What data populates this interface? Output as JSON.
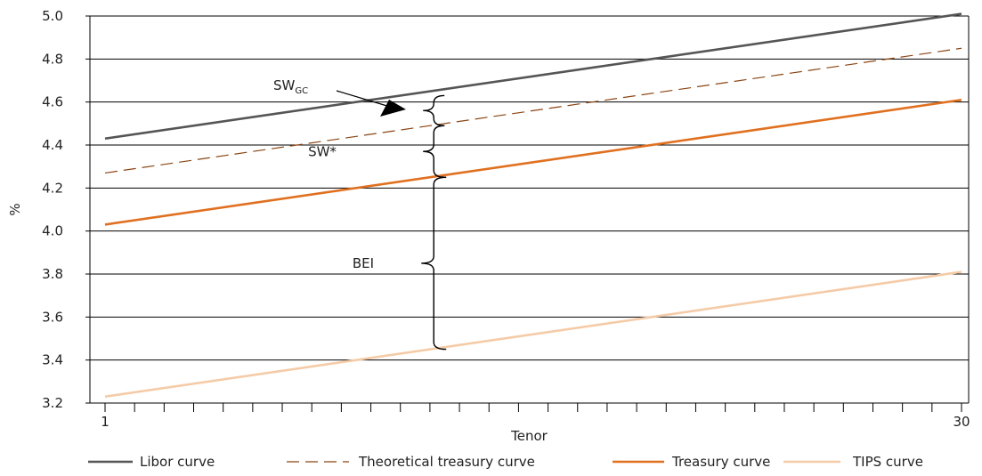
{
  "chart_data": {
    "type": "line",
    "xlabel": "Tenor",
    "ylabel": "%",
    "xlim": [
      1,
      30
    ],
    "ylim": [
      3.2,
      5.0
    ],
    "x_tick_labels": [
      "1",
      "30"
    ],
    "y_ticks": [
      3.2,
      3.4,
      3.6,
      3.8,
      4.0,
      4.2,
      4.4,
      4.6,
      4.8,
      5.0
    ],
    "y_tick_labels": [
      "3.2",
      "3.4",
      "3.6",
      "3.8",
      "4.0",
      "4.2",
      "4.4",
      "4.6",
      "4.8",
      "5.0"
    ],
    "grid": "horizontal",
    "legend_position": "bottom",
    "series": [
      {
        "name": "Libor curve",
        "x": [
          1,
          30
        ],
        "y": [
          4.43,
          5.01
        ],
        "color": "#555555",
        "style": "solid"
      },
      {
        "name": "Theoretical treasury curve",
        "x": [
          1,
          30
        ],
        "y": [
          4.27,
          4.85
        ],
        "color": "#8B4513",
        "style": "dashed"
      },
      {
        "name": "Treasury curve",
        "x": [
          1,
          30
        ],
        "y": [
          4.03,
          4.61
        ],
        "color": "#E07020",
        "style": "solid"
      },
      {
        "name": "TIPS curve",
        "x": [
          1,
          30
        ],
        "y": [
          3.23,
          3.81
        ],
        "color": "#F5CBA7",
        "style": "solid"
      }
    ],
    "annotations": [
      {
        "label": "SW",
        "subscript": "GC",
        "tenor": 12.1,
        "from": 4.49,
        "to": 4.63
      },
      {
        "label": "SW*",
        "tenor": 12.1,
        "from": 4.25,
        "to": 4.49
      },
      {
        "label": "BEI",
        "tenor": 12.1,
        "from": 3.45,
        "to": 4.25
      }
    ]
  }
}
